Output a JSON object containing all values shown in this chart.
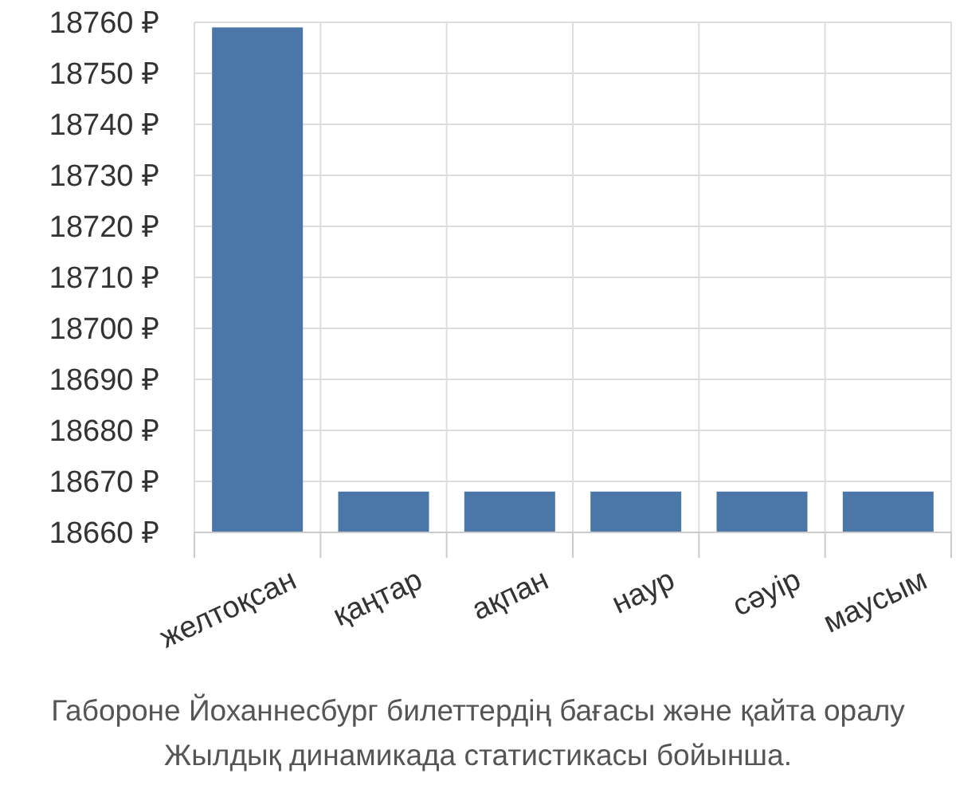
{
  "chart_data": {
    "type": "bar",
    "categories": [
      "желтоқсан",
      "қаңтар",
      "ақпан",
      "наур",
      "сәуір",
      "маусым"
    ],
    "values": [
      18759,
      18668,
      18668,
      18668,
      18668,
      18668
    ],
    "color": "#4a76a8",
    "ylim": [
      18660,
      18760
    ],
    "yticks": [
      {
        "value": 18660,
        "label": "18660 ₽"
      },
      {
        "value": 18670,
        "label": "18670 ₽"
      },
      {
        "value": 18680,
        "label": "18680 ₽"
      },
      {
        "value": 18690,
        "label": "18690 ₽"
      },
      {
        "value": 18700,
        "label": "18700 ₽"
      },
      {
        "value": 18710,
        "label": "18710 ₽"
      },
      {
        "value": 18720,
        "label": "18720 ₽"
      },
      {
        "value": 18730,
        "label": "18730 ₽"
      },
      {
        "value": 18740,
        "label": "18740 ₽"
      },
      {
        "value": 18750,
        "label": "18750 ₽"
      },
      {
        "value": 18760,
        "label": "18760 ₽"
      }
    ],
    "grid": true,
    "annotations": [
      "Габороне Йоханнесбург билеттердің бағасы және қайта оралу",
      "Жылдық динамикада статистикасы бойынша."
    ]
  }
}
